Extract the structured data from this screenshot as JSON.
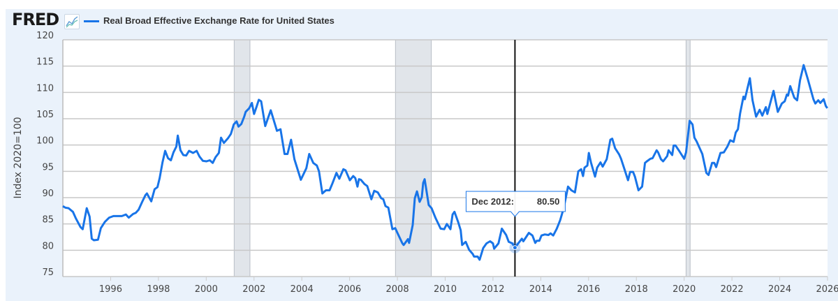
{
  "header": {
    "logo": "FRED",
    "chart_icon": "line-chart-icon",
    "legend_label": "Real Broad Effective Exchange Rate for United States"
  },
  "tooltip": {
    "date": "Dec 2012:",
    "value": "80.50"
  },
  "colors": {
    "series": "#1874e8",
    "recession": "#e1e5ea",
    "panel": "#eaf2fb"
  },
  "chart_data": {
    "type": "line",
    "title": "",
    "xlabel": "",
    "ylabel": "Index 2020=100",
    "xlim": [
      1994,
      2026
    ],
    "ylim": [
      75,
      120
    ],
    "grid": "horizontal",
    "legend": "top-left",
    "yticks": [
      75,
      80,
      85,
      90,
      95,
      100,
      105,
      110,
      115,
      120
    ],
    "xticks": [
      1996,
      1998,
      2000,
      2002,
      2004,
      2006,
      2008,
      2010,
      2012,
      2014,
      2016,
      2018,
      2020,
      2022,
      2024,
      2026
    ],
    "recessions": [
      [
        2001.17,
        2001.83
      ],
      [
        2007.92,
        2009.42
      ],
      [
        2020.08,
        2020.25
      ]
    ],
    "highlight": {
      "x": 2012.92,
      "y": 80.5,
      "label": "Dec 2012"
    },
    "series": [
      {
        "name": "Real Broad Effective Exchange Rate for United States",
        "points": [
          [
            1994.0,
            88.4
          ],
          [
            1994.1,
            88.1
          ],
          [
            1994.24,
            88.0
          ],
          [
            1994.42,
            87.3
          ],
          [
            1994.54,
            86.1
          ],
          [
            1994.74,
            84.4
          ],
          [
            1994.83,
            84.0
          ],
          [
            1995.0,
            88.0
          ],
          [
            1995.12,
            86.4
          ],
          [
            1995.21,
            82.2
          ],
          [
            1995.3,
            81.9
          ],
          [
            1995.47,
            82.0
          ],
          [
            1995.59,
            84.2
          ],
          [
            1995.76,
            85.4
          ],
          [
            1995.94,
            86.2
          ],
          [
            1996.12,
            86.5
          ],
          [
            1996.29,
            86.5
          ],
          [
            1996.47,
            86.5
          ],
          [
            1996.64,
            86.8
          ],
          [
            1996.76,
            86.2
          ],
          [
            1996.94,
            86.9
          ],
          [
            1997.05,
            87.1
          ],
          [
            1997.17,
            87.7
          ],
          [
            1997.32,
            89.2
          ],
          [
            1997.46,
            90.5
          ],
          [
            1997.52,
            90.8
          ],
          [
            1997.7,
            89.3
          ],
          [
            1997.84,
            91.6
          ],
          [
            1997.96,
            92.0
          ],
          [
            1998.05,
            93.7
          ],
          [
            1998.17,
            96.7
          ],
          [
            1998.28,
            98.9
          ],
          [
            1998.4,
            97.5
          ],
          [
            1998.52,
            97.1
          ],
          [
            1998.63,
            98.6
          ],
          [
            1998.75,
            99.7
          ],
          [
            1998.81,
            101.8
          ],
          [
            1998.92,
            99.0
          ],
          [
            1999.04,
            98.1
          ],
          [
            1999.16,
            98.0
          ],
          [
            1999.28,
            98.9
          ],
          [
            1999.45,
            98.5
          ],
          [
            1999.6,
            98.9
          ],
          [
            1999.72,
            97.8
          ],
          [
            1999.86,
            97.0
          ],
          [
            2000.01,
            96.9
          ],
          [
            2000.15,
            97.1
          ],
          [
            2000.27,
            96.6
          ],
          [
            2000.39,
            97.7
          ],
          [
            2000.53,
            98.5
          ],
          [
            2000.62,
            101.4
          ],
          [
            2000.74,
            100.4
          ],
          [
            2000.91,
            101.3
          ],
          [
            2001.03,
            102.1
          ],
          [
            2001.15,
            103.9
          ],
          [
            2001.27,
            104.5
          ],
          [
            2001.35,
            103.5
          ],
          [
            2001.47,
            104.0
          ],
          [
            2001.59,
            105.4
          ],
          [
            2001.65,
            106.3
          ],
          [
            2001.8,
            107.0
          ],
          [
            2001.91,
            108.0
          ],
          [
            2002.0,
            105.9
          ],
          [
            2002.1,
            107.2
          ],
          [
            2002.2,
            108.6
          ],
          [
            2002.3,
            108.3
          ],
          [
            2002.47,
            103.6
          ],
          [
            2002.7,
            106.6
          ],
          [
            2002.96,
            102.7
          ],
          [
            2003.11,
            103.0
          ],
          [
            2003.28,
            98.3
          ],
          [
            2003.4,
            98.3
          ],
          [
            2003.55,
            101.0
          ],
          [
            2003.69,
            97.3
          ],
          [
            2003.96,
            93.4
          ],
          [
            2004.19,
            95.6
          ],
          [
            2004.31,
            98.3
          ],
          [
            2004.48,
            96.6
          ],
          [
            2004.63,
            96.1
          ],
          [
            2004.72,
            95.0
          ],
          [
            2004.86,
            90.8
          ],
          [
            2005.01,
            91.4
          ],
          [
            2005.16,
            91.4
          ],
          [
            2005.28,
            92.7
          ],
          [
            2005.45,
            94.7
          ],
          [
            2005.57,
            93.6
          ],
          [
            2005.74,
            95.4
          ],
          [
            2005.83,
            95.2
          ],
          [
            2006.01,
            93.3
          ],
          [
            2006.15,
            94.1
          ],
          [
            2006.24,
            93.7
          ],
          [
            2006.33,
            92.1
          ],
          [
            2006.39,
            93.5
          ],
          [
            2006.47,
            93.4
          ],
          [
            2006.62,
            92.6
          ],
          [
            2006.74,
            92.2
          ],
          [
            2006.91,
            89.7
          ],
          [
            2007.03,
            91.3
          ],
          [
            2007.18,
            91.0
          ],
          [
            2007.32,
            89.9
          ],
          [
            2007.41,
            89.7
          ],
          [
            2007.5,
            88.4
          ],
          [
            2007.62,
            88.1
          ],
          [
            2007.79,
            84.0
          ],
          [
            2007.91,
            84.2
          ],
          [
            2008.0,
            83.3
          ],
          [
            2008.21,
            81.3
          ],
          [
            2008.26,
            81.0
          ],
          [
            2008.44,
            82.1
          ],
          [
            2008.49,
            81.4
          ],
          [
            2008.64,
            84.8
          ],
          [
            2008.73,
            89.9
          ],
          [
            2008.82,
            91.2
          ],
          [
            2008.93,
            89.2
          ],
          [
            2009.02,
            90.1
          ],
          [
            2009.08,
            92.8
          ],
          [
            2009.14,
            93.5
          ],
          [
            2009.31,
            88.6
          ],
          [
            2009.43,
            88.0
          ],
          [
            2009.6,
            86.1
          ],
          [
            2009.81,
            84.1
          ],
          [
            2009.96,
            84.0
          ],
          [
            2010.07,
            85.0
          ],
          [
            2010.22,
            84.0
          ],
          [
            2010.31,
            86.8
          ],
          [
            2010.39,
            87.3
          ],
          [
            2010.54,
            85.4
          ],
          [
            2010.65,
            83.8
          ],
          [
            2010.71,
            81.0
          ],
          [
            2010.86,
            81.6
          ],
          [
            2011.0,
            80.1
          ],
          [
            2011.15,
            79.3
          ],
          [
            2011.21,
            78.8
          ],
          [
            2011.36,
            78.8
          ],
          [
            2011.44,
            78.2
          ],
          [
            2011.59,
            80.4
          ],
          [
            2011.73,
            81.3
          ],
          [
            2011.88,
            81.7
          ],
          [
            2012.0,
            81.3
          ],
          [
            2012.05,
            80.3
          ],
          [
            2012.23,
            81.3
          ],
          [
            2012.37,
            84.1
          ],
          [
            2012.55,
            82.9
          ],
          [
            2012.66,
            81.6
          ],
          [
            2012.81,
            81.3
          ],
          [
            2012.92,
            80.5
          ],
          [
            2013.21,
            82.2
          ],
          [
            2013.27,
            81.7
          ],
          [
            2013.5,
            83.3
          ],
          [
            2013.65,
            82.8
          ],
          [
            2013.77,
            81.4
          ],
          [
            2013.83,
            81.8
          ],
          [
            2013.94,
            81.8
          ],
          [
            2014.03,
            82.8
          ],
          [
            2014.17,
            83.0
          ],
          [
            2014.32,
            82.9
          ],
          [
            2014.41,
            83.2
          ],
          [
            2014.52,
            82.8
          ],
          [
            2014.67,
            84.1
          ],
          [
            2014.81,
            85.7
          ],
          [
            2014.96,
            88.0
          ],
          [
            2015.14,
            92.1
          ],
          [
            2015.28,
            91.4
          ],
          [
            2015.43,
            91.0
          ],
          [
            2015.57,
            95.0
          ],
          [
            2015.69,
            95.4
          ],
          [
            2015.77,
            94.1
          ],
          [
            2015.83,
            95.7
          ],
          [
            2015.95,
            96.1
          ],
          [
            2016.01,
            98.5
          ],
          [
            2016.1,
            96.7
          ],
          [
            2016.27,
            94.0
          ],
          [
            2016.36,
            95.7
          ],
          [
            2016.5,
            96.7
          ],
          [
            2016.59,
            95.9
          ],
          [
            2016.76,
            97.3
          ],
          [
            2016.91,
            101.0
          ],
          [
            2016.99,
            101.2
          ],
          [
            2017.11,
            99.4
          ],
          [
            2017.28,
            98.2
          ],
          [
            2017.36,
            97.4
          ],
          [
            2017.51,
            95.3
          ],
          [
            2017.65,
            93.3
          ],
          [
            2017.74,
            94.9
          ],
          [
            2017.86,
            94.9
          ],
          [
            2017.94,
            94.0
          ],
          [
            2018.09,
            91.4
          ],
          [
            2018.24,
            92.1
          ],
          [
            2018.36,
            96.6
          ],
          [
            2018.44,
            96.9
          ],
          [
            2018.59,
            97.4
          ],
          [
            2018.68,
            97.5
          ],
          [
            2018.85,
            99.0
          ],
          [
            2018.91,
            98.6
          ],
          [
            2019.03,
            97.3
          ],
          [
            2019.12,
            96.9
          ],
          [
            2019.29,
            97.9
          ],
          [
            2019.35,
            99.0
          ],
          [
            2019.5,
            98.1
          ],
          [
            2019.56,
            99.9
          ],
          [
            2019.64,
            99.9
          ],
          [
            2019.79,
            98.9
          ],
          [
            2019.9,
            98.1
          ],
          [
            2020.0,
            97.4
          ],
          [
            2020.08,
            98.6
          ],
          [
            2020.23,
            104.6
          ],
          [
            2020.35,
            103.9
          ],
          [
            2020.43,
            101.4
          ],
          [
            2020.52,
            100.7
          ],
          [
            2020.61,
            99.8
          ],
          [
            2020.76,
            98.3
          ],
          [
            2020.93,
            94.7
          ],
          [
            2021.02,
            94.3
          ],
          [
            2021.17,
            96.6
          ],
          [
            2021.26,
            96.6
          ],
          [
            2021.34,
            95.8
          ],
          [
            2021.52,
            98.5
          ],
          [
            2021.66,
            98.6
          ],
          [
            2021.81,
            99.7
          ],
          [
            2021.93,
            100.9
          ],
          [
            2022.07,
            100.6
          ],
          [
            2022.16,
            102.4
          ],
          [
            2022.25,
            103.0
          ],
          [
            2022.34,
            106.0
          ],
          [
            2022.48,
            109.2
          ],
          [
            2022.54,
            108.7
          ],
          [
            2022.75,
            112.7
          ],
          [
            2022.86,
            108.5
          ],
          [
            2023.01,
            105.4
          ],
          [
            2023.16,
            106.7
          ],
          [
            2023.27,
            105.6
          ],
          [
            2023.42,
            107.2
          ],
          [
            2023.48,
            105.9
          ],
          [
            2023.74,
            110.3
          ],
          [
            2023.92,
            106.3
          ],
          [
            2024.09,
            107.9
          ],
          [
            2024.21,
            108.3
          ],
          [
            2024.3,
            109.6
          ],
          [
            2024.35,
            109.4
          ],
          [
            2024.44,
            111.2
          ],
          [
            2024.61,
            109.0
          ],
          [
            2024.73,
            108.5
          ],
          [
            2024.85,
            112.3
          ],
          [
            2025.0,
            115.2
          ],
          [
            2025.17,
            112.6
          ],
          [
            2025.41,
            108.7
          ],
          [
            2025.49,
            107.9
          ],
          [
            2025.61,
            108.5
          ],
          [
            2025.7,
            108.0
          ],
          [
            2025.84,
            108.7
          ],
          [
            2025.93,
            107.4
          ],
          [
            2025.99,
            107.0
          ]
        ]
      }
    ]
  }
}
